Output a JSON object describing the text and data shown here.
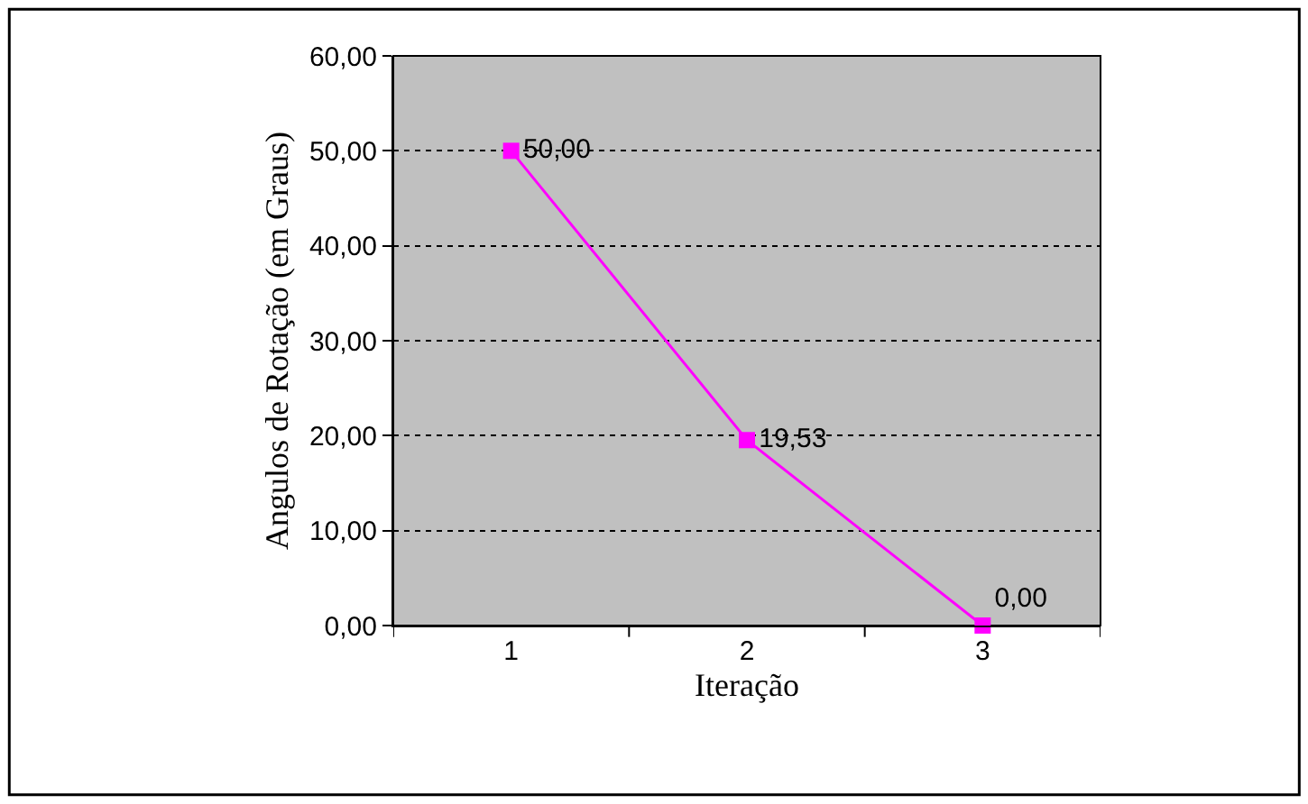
{
  "chart_data": {
    "type": "line",
    "xlabel": "Iteração",
    "ylabel": "Angulos de Rotação (em Graus)",
    "categories": [
      "1",
      "2",
      "3"
    ],
    "series": [
      {
        "color": "#ff00ff",
        "values": [
          50.0,
          19.53,
          0.0
        ],
        "value_labels": [
          "50,00",
          "19,53",
          "0,00"
        ]
      }
    ],
    "ylim": [
      0,
      60
    ],
    "yticks": [
      {
        "value": 0,
        "label": "0,00"
      },
      {
        "value": 10,
        "label": "10,00"
      },
      {
        "value": 20,
        "label": "20,00"
      },
      {
        "value": 30,
        "label": "30,00"
      },
      {
        "value": 40,
        "label": "40,00"
      },
      {
        "value": 50,
        "label": "50,00"
      },
      {
        "value": 60,
        "label": "60,00"
      }
    ],
    "grid": "y",
    "marker": "square",
    "line_style": "solid",
    "legend": false
  }
}
